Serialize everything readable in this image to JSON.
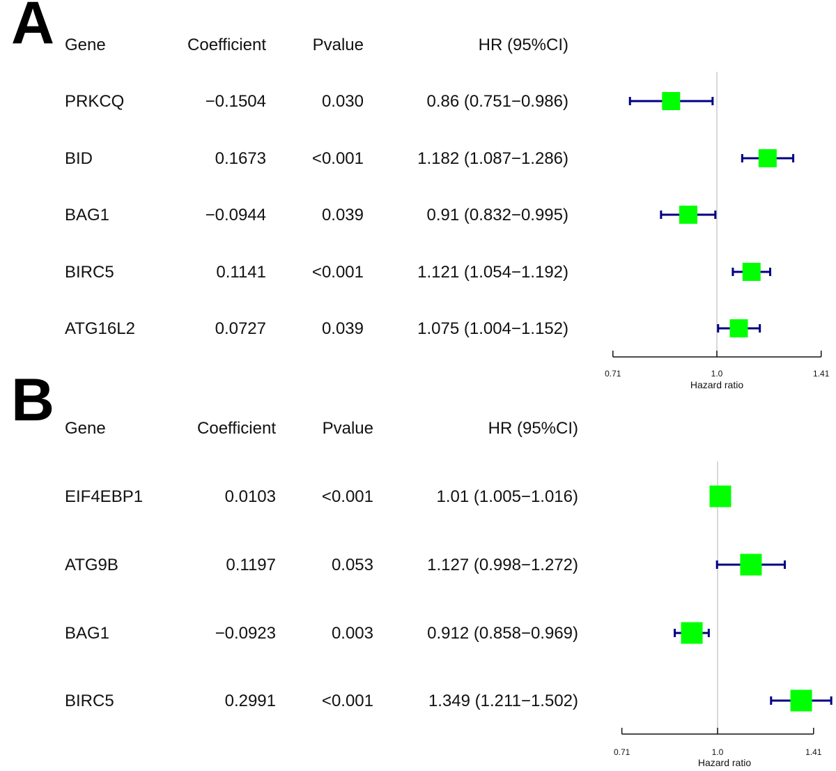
{
  "chart_data": [
    {
      "type": "forest",
      "panel_label": "A",
      "columns": [
        "Gene",
        "Coefficient",
        "Pvalue",
        "HR (95%CI)"
      ],
      "rows": [
        {
          "gene": "PRKCQ",
          "coefficient": "−0.1504",
          "pvalue": "0.030",
          "hr_text": "0.86 (0.751−0.986)",
          "hr": 0.86,
          "lower": 0.751,
          "upper": 0.986
        },
        {
          "gene": "BID",
          "coefficient": "0.1673",
          "pvalue": "<0.001",
          "hr_text": "1.182 (1.087−1.286)",
          "hr": 1.182,
          "lower": 1.087,
          "upper": 1.286
        },
        {
          "gene": "BAG1",
          "coefficient": "−0.0944",
          "pvalue": "0.039",
          "hr_text": "0.91 (0.832−0.995)",
          "hr": 0.91,
          "lower": 0.832,
          "upper": 0.995
        },
        {
          "gene": "BIRC5",
          "coefficient": "0.1141",
          "pvalue": "<0.001",
          "hr_text": "1.121 (1.054−1.192)",
          "hr": 1.121,
          "lower": 1.054,
          "upper": 1.192
        },
        {
          "gene": "ATG16L2",
          "coefficient": "0.0727",
          "pvalue": "0.039",
          "hr_text": "1.075 (1.004−1.152)",
          "hr": 1.075,
          "lower": 1.004,
          "upper": 1.152
        }
      ],
      "xaxis": {
        "label": "Hazard ratio",
        "scale": "log",
        "ticks": [
          "0.71",
          "1.0",
          "1.41"
        ],
        "tick_values": [
          0.71,
          1.0,
          1.41
        ],
        "reference_line": 1.0
      },
      "colors": {
        "box": "#00ff00",
        "whisker": "#000080",
        "reference": "#cccccc"
      }
    },
    {
      "type": "forest",
      "panel_label": "B",
      "columns": [
        "Gene",
        "Coefficient",
        "Pvalue",
        "HR (95%CI)"
      ],
      "rows": [
        {
          "gene": "EIF4EBP1",
          "coefficient": "0.0103",
          "pvalue": "<0.001",
          "hr_text": "1.01 (1.005−1.016)",
          "hr": 1.01,
          "lower": 1.005,
          "upper": 1.016
        },
        {
          "gene": "ATG9B",
          "coefficient": "0.1197",
          "pvalue": "0.053",
          "hr_text": "1.127 (0.998−1.272)",
          "hr": 1.127,
          "lower": 0.998,
          "upper": 1.272
        },
        {
          "gene": "BAG1",
          "coefficient": "−0.0923",
          "pvalue": "0.003",
          "hr_text": "0.912 (0.858−0.969)",
          "hr": 0.912,
          "lower": 0.858,
          "upper": 0.969
        },
        {
          "gene": "BIRC5",
          "coefficient": "0.2991",
          "pvalue": "<0.001",
          "hr_text": "1.349 (1.211−1.502)",
          "hr": 1.349,
          "lower": 1.211,
          "upper": 1.502
        }
      ],
      "xaxis": {
        "label": "Hazard ratio",
        "scale": "log",
        "ticks": [
          "0.71",
          "1.0",
          "1.41"
        ],
        "tick_values": [
          0.71,
          1.0,
          1.41
        ],
        "reference_line": 1.0
      },
      "colors": {
        "box": "#00ff00",
        "whisker": "#000080",
        "reference": "#cccccc"
      }
    }
  ]
}
